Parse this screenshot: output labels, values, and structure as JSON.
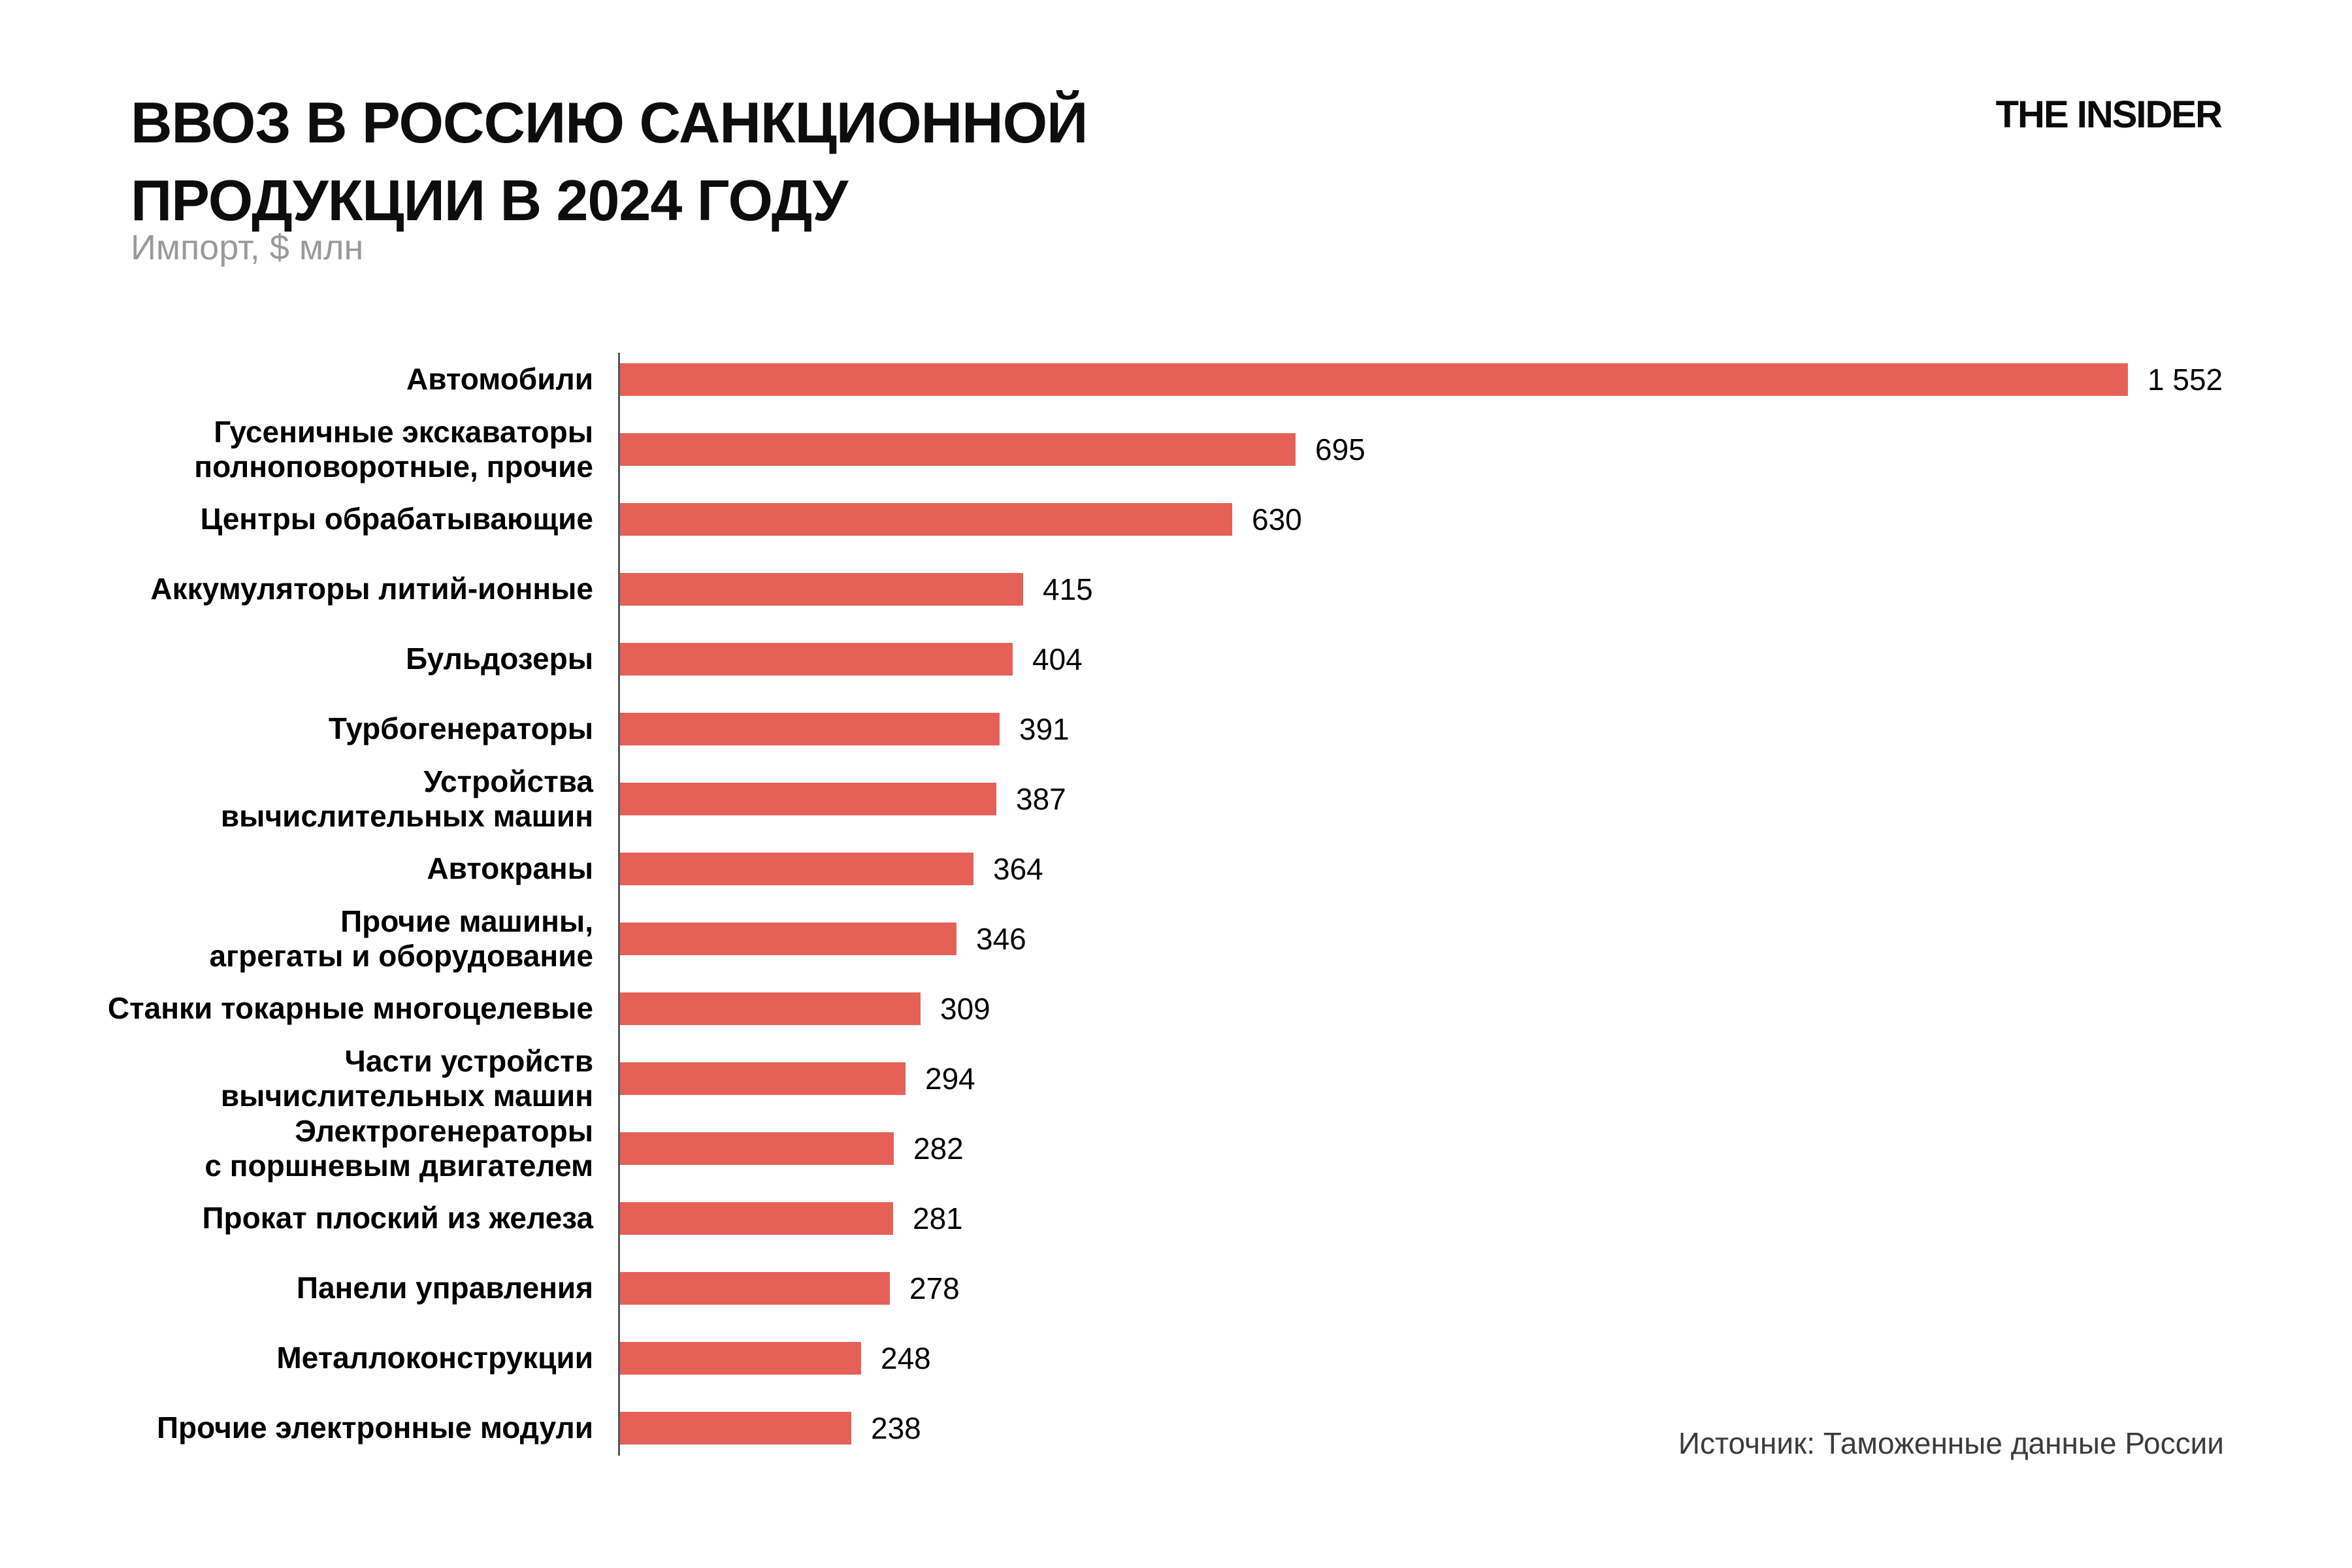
{
  "header": {
    "title_line1": "ВВОЗ В РОССИЮ САНКЦИОННОЙ",
    "title_line2": "ПРОДУКЦИИ В 2024 ГОДУ",
    "subtitle": "Импорт, $ млн",
    "logo": "THE INSIDER"
  },
  "footer": {
    "source": "Источник: Таможенные данные России"
  },
  "chart_data": {
    "type": "bar",
    "orientation": "horizontal",
    "title": "ВВОЗ В РОССИЮ САНКЦИОННОЙ ПРОДУКЦИИ В 2024 ГОДУ",
    "subtitle": "Импорт, $ млн",
    "xlabel": "",
    "ylabel": "",
    "xlim": [
      0,
      1600
    ],
    "grid": false,
    "legend": false,
    "bar_color": "#E56158",
    "axis_color": "#57575A",
    "categories": [
      "Автомобили",
      "Гусеничные экскаваторы полноповоротные, прочие",
      "Центры обрабатывающие",
      "Аккумуляторы литий-ионные",
      "Бульдозеры",
      "Турбогенераторы",
      "Устройства вычислительных машин",
      "Автокраны",
      "Прочие машины, агрегаты и оборудование",
      "Станки токарные многоцелевые",
      "Части устройств вычислительных машин",
      "Электрогенераторы с поршневым двигателем",
      "Прокат плоский из железа",
      "Панели управления",
      "Металлоконструкции",
      "Прочие электронные модули"
    ],
    "values": [
      1552,
      695,
      630,
      415,
      404,
      391,
      387,
      364,
      346,
      309,
      294,
      282,
      281,
      278,
      248,
      238
    ],
    "value_labels": [
      "1 552",
      "695",
      "630",
      "415",
      "404",
      "391",
      "387",
      "364",
      "346",
      "309",
      "294",
      "282",
      "281",
      "278",
      "248",
      "238"
    ],
    "items": [
      {
        "label_lines": [
          "Автомобили"
        ],
        "value": 1552,
        "value_label": "1 552"
      },
      {
        "label_lines": [
          "Гусеничные экскаваторы",
          "полноповоротные, прочие"
        ],
        "value": 695,
        "value_label": "695"
      },
      {
        "label_lines": [
          "Центры обрабатывающие"
        ],
        "value": 630,
        "value_label": "630"
      },
      {
        "label_lines": [
          "Аккумуляторы литий-ионные"
        ],
        "value": 415,
        "value_label": "415"
      },
      {
        "label_lines": [
          "Бульдозеры"
        ],
        "value": 404,
        "value_label": "404"
      },
      {
        "label_lines": [
          "Турбогенераторы"
        ],
        "value": 391,
        "value_label": "391"
      },
      {
        "label_lines": [
          "Устройства",
          "вычислительных машин"
        ],
        "value": 387,
        "value_label": "387"
      },
      {
        "label_lines": [
          "Автокраны"
        ],
        "value": 364,
        "value_label": "364"
      },
      {
        "label_lines": [
          "Прочие машины,",
          "агрегаты и оборудование"
        ],
        "value": 346,
        "value_label": "346"
      },
      {
        "label_lines": [
          "Станки токарные многоцелевые"
        ],
        "value": 309,
        "value_label": "309"
      },
      {
        "label_lines": [
          "Части устройств",
          "вычислительных машин"
        ],
        "value": 294,
        "value_label": "294"
      },
      {
        "label_lines": [
          "Электрогенераторы",
          "с поршневым двигателем"
        ],
        "value": 282,
        "value_label": "282"
      },
      {
        "label_lines": [
          "Прокат плоский из железа"
        ],
        "value": 281,
        "value_label": "281"
      },
      {
        "label_lines": [
          "Панели управления"
        ],
        "value": 278,
        "value_label": "278"
      },
      {
        "label_lines": [
          "Металлоконструкции"
        ],
        "value": 248,
        "value_label": "248"
      },
      {
        "label_lines": [
          "Прочие электронные модули"
        ],
        "value": 238,
        "value_label": "238"
      }
    ]
  }
}
